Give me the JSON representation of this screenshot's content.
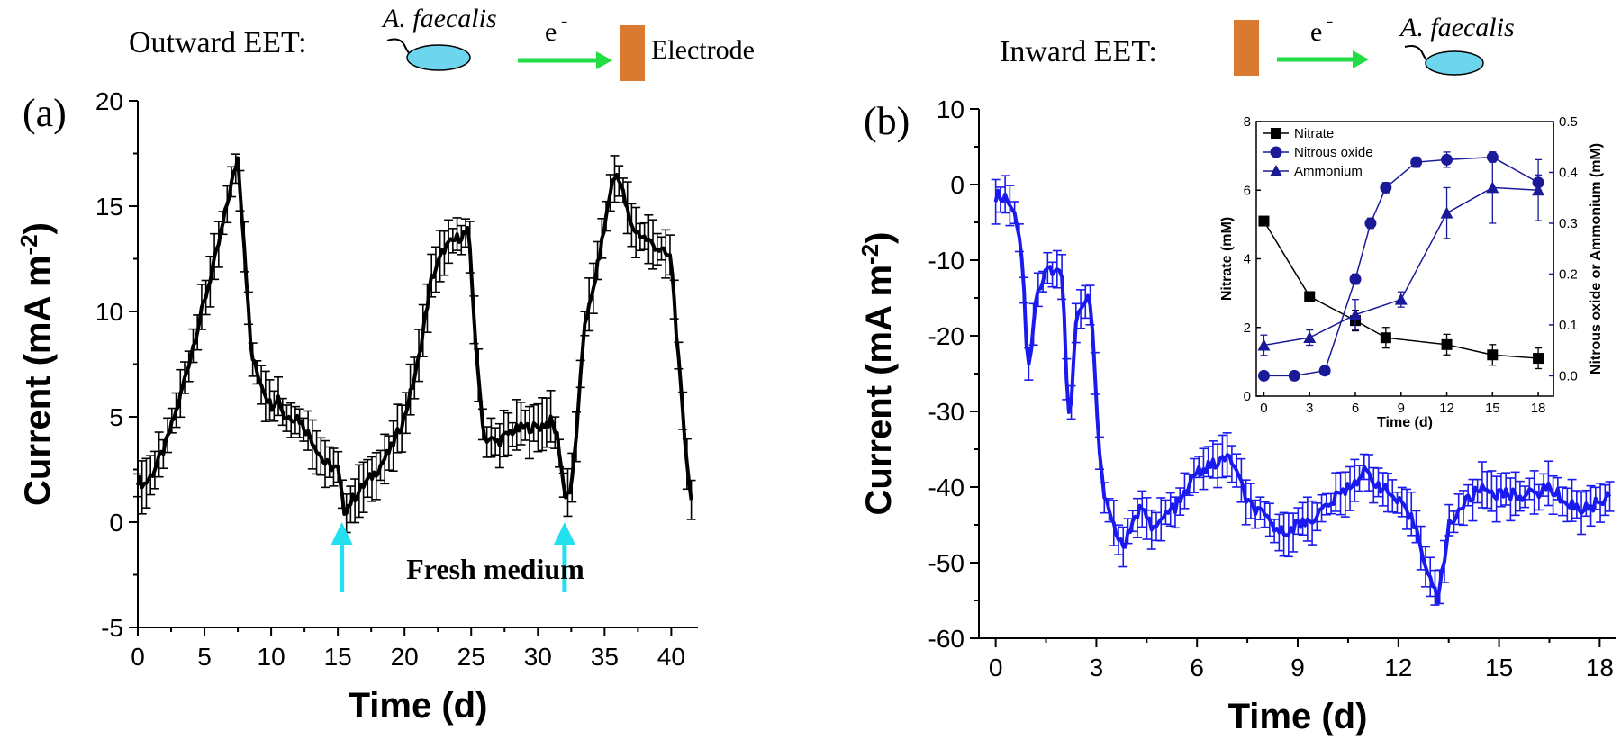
{
  "header_left": {
    "label": "Outward EET:",
    "organism": "A. faecalis",
    "electron": "e",
    "electron_sup": "-",
    "target": "Electrode",
    "colors": {
      "arrow": "#22dd44",
      "electrode": "#d97a30",
      "cell": "#6dd6ee"
    }
  },
  "header_right": {
    "label": "Inward EET:",
    "organism": "A. faecalis",
    "electron": "e",
    "electron_sup": "-"
  },
  "chart_data": [
    {
      "panel_label": "(a)",
      "type": "line",
      "color": "#000000",
      "xlabel": "Time (d)",
      "ylabel_main": "Current (mA m",
      "ylabel_sup": "-2",
      "ylabel_end": ")",
      "xlim": [
        0,
        42
      ],
      "ylim": [
        -5,
        20
      ],
      "xticks": [
        0,
        5,
        10,
        15,
        20,
        25,
        30,
        35,
        40
      ],
      "yticks": [
        -5,
        0,
        5,
        10,
        15,
        20
      ],
      "error_bars": true,
      "series": [
        {
          "x": [
            0,
            0.5,
            1,
            2,
            3,
            4,
            5,
            6,
            6.5,
            7,
            7.5,
            8,
            8.5,
            9,
            10,
            10.5,
            11,
            12,
            13,
            14,
            15,
            15.3,
            15.5,
            16,
            17,
            18,
            19,
            20,
            21,
            22,
            23,
            24,
            24.8,
            25.5,
            26,
            27,
            28,
            29,
            30,
            31,
            31.5,
            32,
            32.5,
            33,
            33.5,
            34,
            35,
            35.5,
            36,
            37,
            38,
            39,
            40,
            40.5,
            41,
            41.5
          ],
          "y": [
            2,
            1.8,
            2.2,
            3.5,
            5.5,
            8,
            10.5,
            13,
            14.5,
            16,
            17.3,
            13,
            8,
            7,
            5.5,
            6,
            5,
            5,
            4,
            2.8,
            2.5,
            1.2,
            0.5,
            1,
            1.8,
            2.5,
            3.5,
            5,
            7.5,
            11.5,
            13,
            13.5,
            13.8,
            7,
            4,
            3.8,
            4.3,
            4.5,
            4.5,
            4.8,
            4,
            1.3,
            1.5,
            5,
            9.5,
            10.5,
            14,
            16,
            16.6,
            14,
            13.5,
            13,
            12.5,
            8,
            4,
            1
          ]
        }
      ],
      "annotation": "Fresh medium",
      "arrows_x": [
        15.3,
        32
      ],
      "arrow_color": "#22e0ee"
    },
    {
      "panel_label": "(b)",
      "type": "line",
      "color": "#1a1aee",
      "xlabel": "Time (d)",
      "ylabel_main": "Current (mA m",
      "ylabel_sup": "-2",
      "ylabel_end": ")",
      "xlim": [
        -0.5,
        18.5
      ],
      "ylim": [
        -60,
        10
      ],
      "xticks": [
        0,
        3,
        6,
        9,
        12,
        15,
        18
      ],
      "yticks": [
        -60,
        -50,
        -40,
        -30,
        -20,
        -10,
        0,
        10
      ],
      "error_bars": true,
      "series": [
        {
          "x": [
            0,
            0.2,
            0.4,
            0.6,
            0.8,
            0.9,
            1.0,
            1.2,
            1.5,
            1.8,
            2.0,
            2.1,
            2.2,
            2.4,
            2.6,
            2.8,
            2.9,
            3.0,
            3.2,
            3.5,
            3.8,
            4.1,
            4.4,
            4.7,
            5.0,
            5.5,
            6.0,
            6.5,
            7.0,
            7.5,
            8.0,
            8.5,
            9.0,
            9.5,
            10.0,
            10.5,
            11.0,
            11.5,
            12.0,
            12.5,
            13.0,
            13.2,
            13.5,
            14.0,
            14.5,
            15.0,
            15.5,
            16.0,
            16.5,
            17.0,
            17.5,
            18.0,
            18.3
          ],
          "y": [
            -1.5,
            -1.5,
            -2,
            -4,
            -10,
            -20,
            -24,
            -15,
            -11.5,
            -11,
            -12,
            -25,
            -32,
            -18,
            -16,
            -15,
            -20,
            -30,
            -40,
            -45,
            -48,
            -45,
            -42,
            -46,
            -44,
            -42,
            -38,
            -37,
            -36,
            -42,
            -44,
            -46,
            -45,
            -44,
            -42,
            -40,
            -38,
            -40,
            -42,
            -45,
            -53,
            -55,
            -45,
            -42,
            -40,
            -41,
            -41,
            -41,
            -40,
            -42,
            -43,
            -42,
            -41
          ]
        }
      ],
      "inset": {
        "type": "line",
        "xlabel": "Time (d)",
        "ylabel": "Nitrate (mM)",
        "ylabel2": "Nitrous oxide or Ammonium (mM)",
        "xlim": [
          -0.5,
          19
        ],
        "ylim": [
          0,
          8
        ],
        "ylim2": [
          -0.04,
          0.5
        ],
        "xticks": [
          0,
          3,
          6,
          9,
          12,
          15,
          18
        ],
        "yticks": [
          0,
          2,
          4,
          6,
          8
        ],
        "yticks2": [
          0.0,
          0.1,
          0.2,
          0.3,
          0.4,
          0.5
        ],
        "legend_position": "top-left",
        "series": [
          {
            "name": "Nitrate",
            "axis": "left",
            "marker": "square",
            "color": "#000000",
            "x": [
              0,
              3,
              6,
              8,
              12,
              15,
              18
            ],
            "y": [
              5.1,
              2.9,
              2.2,
              1.7,
              1.5,
              1.2,
              1.1
            ],
            "err": [
              0.1,
              0.1,
              0.3,
              0.3,
              0.3,
              0.3,
              0.3
            ]
          },
          {
            "name": "Nitrous oxide",
            "axis": "right",
            "marker": "circle",
            "color": "#1a1a99",
            "x": [
              0,
              2,
              4,
              6,
              7,
              8,
              10,
              12,
              15,
              18
            ],
            "y": [
              0.0,
              0.0,
              0.01,
              0.19,
              0.3,
              0.37,
              0.42,
              0.425,
              0.43,
              0.38
            ],
            "err": [
              0,
              0,
              0,
              0.01,
              0.01,
              0.01,
              0.01,
              0.015,
              0.01,
              0.015
            ]
          },
          {
            "name": "Ammonium",
            "axis": "right",
            "marker": "triangle",
            "color": "#1a1a99",
            "x": [
              0,
              3,
              6,
              9,
              12,
              15,
              18
            ],
            "y": [
              0.06,
              0.075,
              0.12,
              0.15,
              0.32,
              0.37,
              0.365
            ],
            "err": [
              0.02,
              0.015,
              0.03,
              0.015,
              0.05,
              0.07,
              0.06
            ]
          }
        ]
      }
    }
  ]
}
